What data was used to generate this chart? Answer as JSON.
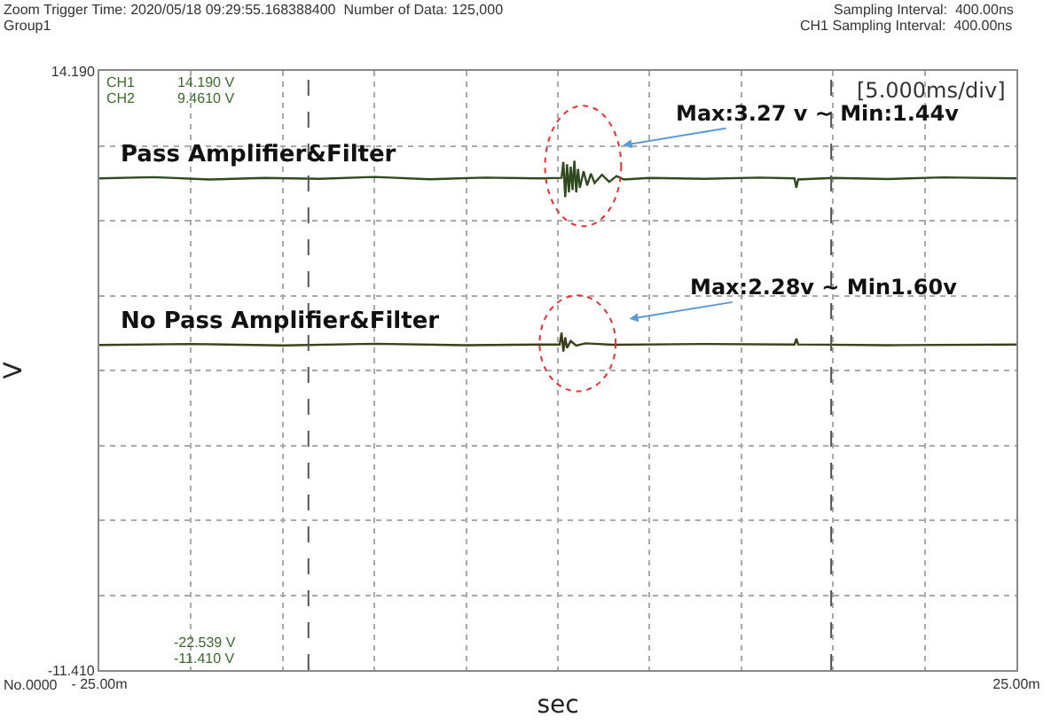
{
  "chart_data": {
    "type": "line",
    "xlabel": "sec",
    "ylabel": "V",
    "xlim": [
      -25,
      25
    ],
    "ylim": [
      -11.41,
      14.19
    ],
    "xticks": [
      {
        "value": -25,
        "label": "- 25.00m"
      },
      {
        "value": -20,
        "label": null
      },
      {
        "value": -15,
        "label": null
      },
      {
        "value": -10,
        "label": null
      },
      {
        "value": -5,
        "label": null
      },
      {
        "value": 0,
        "label": null
      },
      {
        "value": 5,
        "label": null
      },
      {
        "value": 10,
        "label": null
      },
      {
        "value": 15,
        "label": null
      },
      {
        "value": 20,
        "label": null
      },
      {
        "value": 25,
        "label": "25.00m"
      }
    ],
    "yticks": [
      {
        "value": 14.19,
        "label": "14.190"
      },
      {
        "value": 10.99,
        "label": null
      },
      {
        "value": 7.79,
        "label": null
      },
      {
        "value": 4.59,
        "label": null
      },
      {
        "value": 1.39,
        "label": null
      },
      {
        "value": -1.81,
        "label": null
      },
      {
        "value": -5.01,
        "label": null
      },
      {
        "value": -8.21,
        "label": null
      },
      {
        "value": -11.41,
        "label": "-11.410"
      }
    ],
    "grid": true,
    "marker": "none",
    "line_style": "solid",
    "series": [
      {
        "name": "Pass Amplifier&Filter",
        "color": "#2e4a1e",
        "x": [
          -25,
          -22,
          -19,
          -16,
          -13,
          -10,
          -7,
          -4,
          -1,
          0.2,
          0.3,
          0.4,
          0.5,
          0.6,
          0.7,
          0.8,
          0.9,
          1.0,
          1.1,
          1.2,
          1.4,
          1.6,
          1.8,
          2.0,
          2.4,
          2.8,
          3.2,
          3.6,
          5,
          8,
          11,
          12.9,
          13.0,
          13.1,
          15,
          18,
          21,
          25
        ],
        "values": [
          9.6,
          9.65,
          9.55,
          9.62,
          9.58,
          9.66,
          9.56,
          9.63,
          9.6,
          9.62,
          10.3,
          8.8,
          10.2,
          9.0,
          10.1,
          9.1,
          10.35,
          9.0,
          10.0,
          9.2,
          9.9,
          9.3,
          9.8,
          9.4,
          9.75,
          9.45,
          9.7,
          9.55,
          9.62,
          9.58,
          9.63,
          9.6,
          9.2,
          9.55,
          9.62,
          9.57,
          9.64,
          9.6
        ]
      },
      {
        "name": "No Pass Amplifier&Filter",
        "color": "#3c3f1a",
        "x": [
          -25,
          -20,
          -15,
          -10,
          -5,
          -1,
          0.1,
          0.2,
          0.3,
          0.4,
          0.5,
          0.7,
          1.0,
          1.5,
          3,
          8,
          12.9,
          13.0,
          13.1,
          18,
          25
        ],
        "values": [
          2.48,
          2.52,
          2.46,
          2.53,
          2.47,
          2.5,
          2.5,
          3.0,
          2.2,
          2.8,
          2.35,
          2.65,
          2.45,
          2.55,
          2.49,
          2.52,
          2.5,
          2.75,
          2.5,
          2.47,
          2.5
        ]
      }
    ],
    "ref_lines": [
      {
        "axis": "x",
        "value": -13.6,
        "color": "#555555",
        "line_style": "dashed"
      },
      {
        "axis": "x",
        "value": 14.9,
        "color": "#555555",
        "line_style": "dashed"
      }
    ],
    "annotations": [
      "Zoom Trigger Time: 2020/05/18 09:29:55.168388400  Number of Data: 125,000",
      "Group1",
      "Sampling Interval:  400.00ns",
      "CH1 Sampling Interval:  400.00ns",
      "CH1",
      "CH2",
      "14.190 V",
      "9.4610 V",
      "-22.539 V",
      "-11.410 V",
      "No.0000",
      "[5.000ms/div]",
      "Max:3.27 v ~ Min:1.44v",
      "Max:2.28v ~ Min1.60v"
    ]
  }
}
